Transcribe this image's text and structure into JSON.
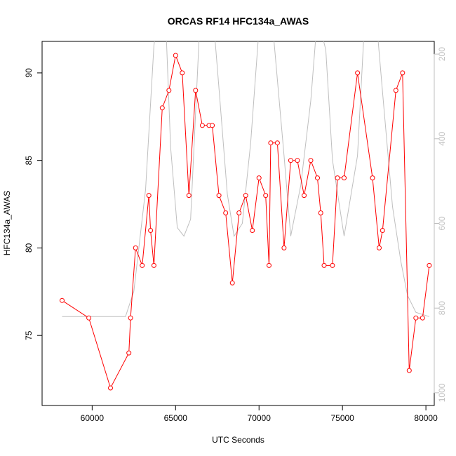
{
  "chart_data": {
    "type": "line",
    "title": "ORCAS RF14 HFC134a_AWAS",
    "xlabel": "UTC Seconds",
    "ylabel": "HFC134a_AWAS",
    "xlim": [
      57000,
      80500
    ],
    "ylim": [
      71.0,
      91.8
    ],
    "y2lim": [
      1030,
      170
    ],
    "x_ticks": [
      60000,
      65000,
      70000,
      75000,
      80000
    ],
    "y_ticks": [
      75,
      80,
      85,
      90
    ],
    "y2_ticks": [
      200,
      400,
      600,
      800,
      1000
    ],
    "grid": false,
    "legend": "none",
    "colors": {
      "primary": "#ff0000",
      "secondary": "#bfbfbf",
      "axis": "#000000"
    },
    "series": [
      {
        "axis": "left",
        "color": "#ff0000",
        "marker": "open-circle",
        "x": [
          58200,
          59800,
          61100,
          62200,
          62300,
          62600,
          63000,
          63400,
          63500,
          63700,
          64200,
          64600,
          65000,
          65400,
          65800,
          66200,
          66600,
          67000,
          67200,
          67600,
          68000,
          68400,
          68800,
          69200,
          69600,
          70000,
          70400,
          70600,
          70700,
          71100,
          71500,
          71900,
          72300,
          72700,
          73100,
          73500,
          73700,
          73900,
          74400,
          74700,
          75100,
          75900,
          76800,
          77200,
          77400,
          78200,
          78600,
          79000,
          79400,
          79800,
          80200
        ],
        "y": [
          77,
          76,
          72,
          74,
          76,
          80,
          79,
          83,
          81,
          79,
          88,
          89,
          91,
          90,
          83,
          89,
          87,
          87,
          87,
          83,
          82,
          78,
          82,
          83,
          81,
          84,
          83,
          79,
          86,
          86,
          80,
          85,
          85,
          83,
          85,
          84,
          82,
          79,
          79,
          84,
          84,
          90,
          84,
          80,
          81,
          89,
          90,
          73,
          76,
          76,
          79
        ]
      },
      {
        "axis": "right",
        "color": "#bfbfbf",
        "marker": "none",
        "x": [
          58200,
          60000,
          62000,
          62500,
          63200,
          63700,
          64300,
          64700,
          65100,
          65500,
          65900,
          66400,
          66900,
          67600,
          68100,
          68500,
          69000,
          69500,
          70000,
          70500,
          70900,
          71500,
          71900,
          72500,
          73100,
          73500,
          74000,
          74400,
          75100,
          75900,
          76600,
          77400,
          78000,
          78500,
          78900,
          79400,
          80200
        ],
        "y": [
          820,
          820,
          820,
          760,
          520,
          180,
          10,
          420,
          610,
          630,
          590,
          170,
          -60,
          280,
          530,
          630,
          600,
          410,
          140,
          20,
          170,
          440,
          630,
          510,
          310,
          110,
          190,
          450,
          630,
          440,
          -80,
          290,
          560,
          690,
          770,
          810,
          820
        ]
      }
    ]
  }
}
